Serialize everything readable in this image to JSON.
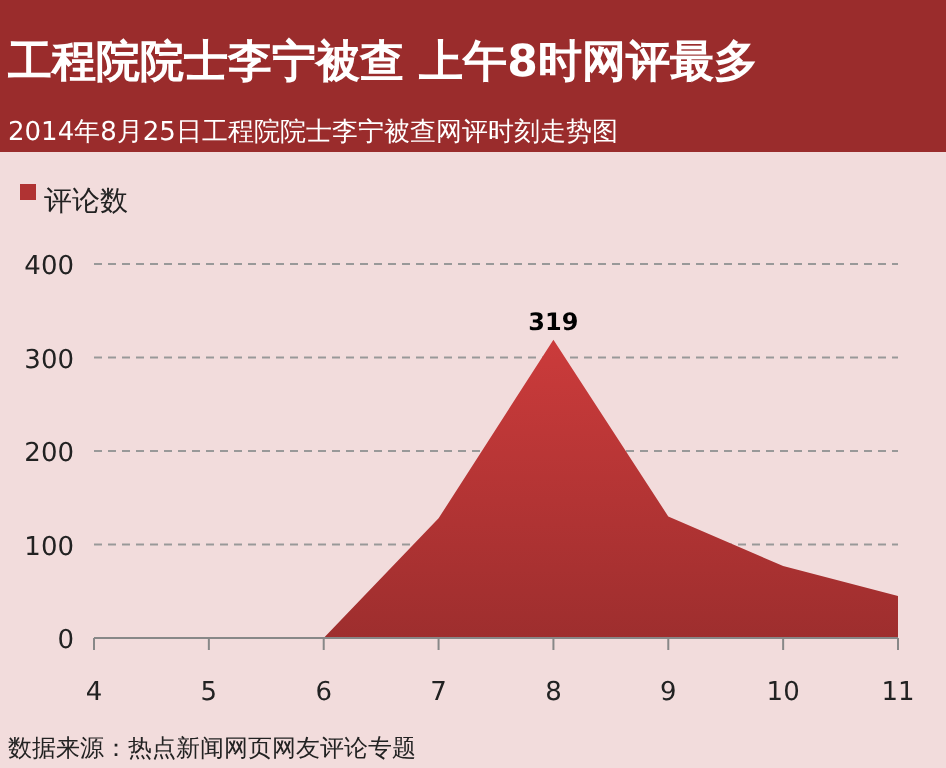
{
  "chart_data": {
    "type": "area",
    "title": "工程院院士李宁被查 上午8时网评最多",
    "subtitle": "2014年8月25日工程院院士李宁被查网评时刻走势图",
    "x": [
      4,
      5,
      6,
      7,
      8,
      9,
      10,
      11
    ],
    "series": [
      {
        "name": "评论数",
        "color": "#b03333",
        "values": [
          0,
          0,
          0,
          128,
          319,
          130,
          77,
          45
        ],
        "value_labels": [
          null,
          null,
          null,
          null,
          "319",
          null,
          null,
          null
        ]
      }
    ],
    "xlim": [
      4,
      11
    ],
    "xticks": [
      4,
      5,
      6,
      7,
      8,
      9,
      10,
      11
    ],
    "ylim": [
      0,
      400
    ],
    "yticks": [
      0,
      100,
      200,
      300,
      400
    ],
    "grid": "y",
    "legend": "top left",
    "annotations": [
      "数据来源：热点新闻网页网友评论专题"
    ]
  }
}
